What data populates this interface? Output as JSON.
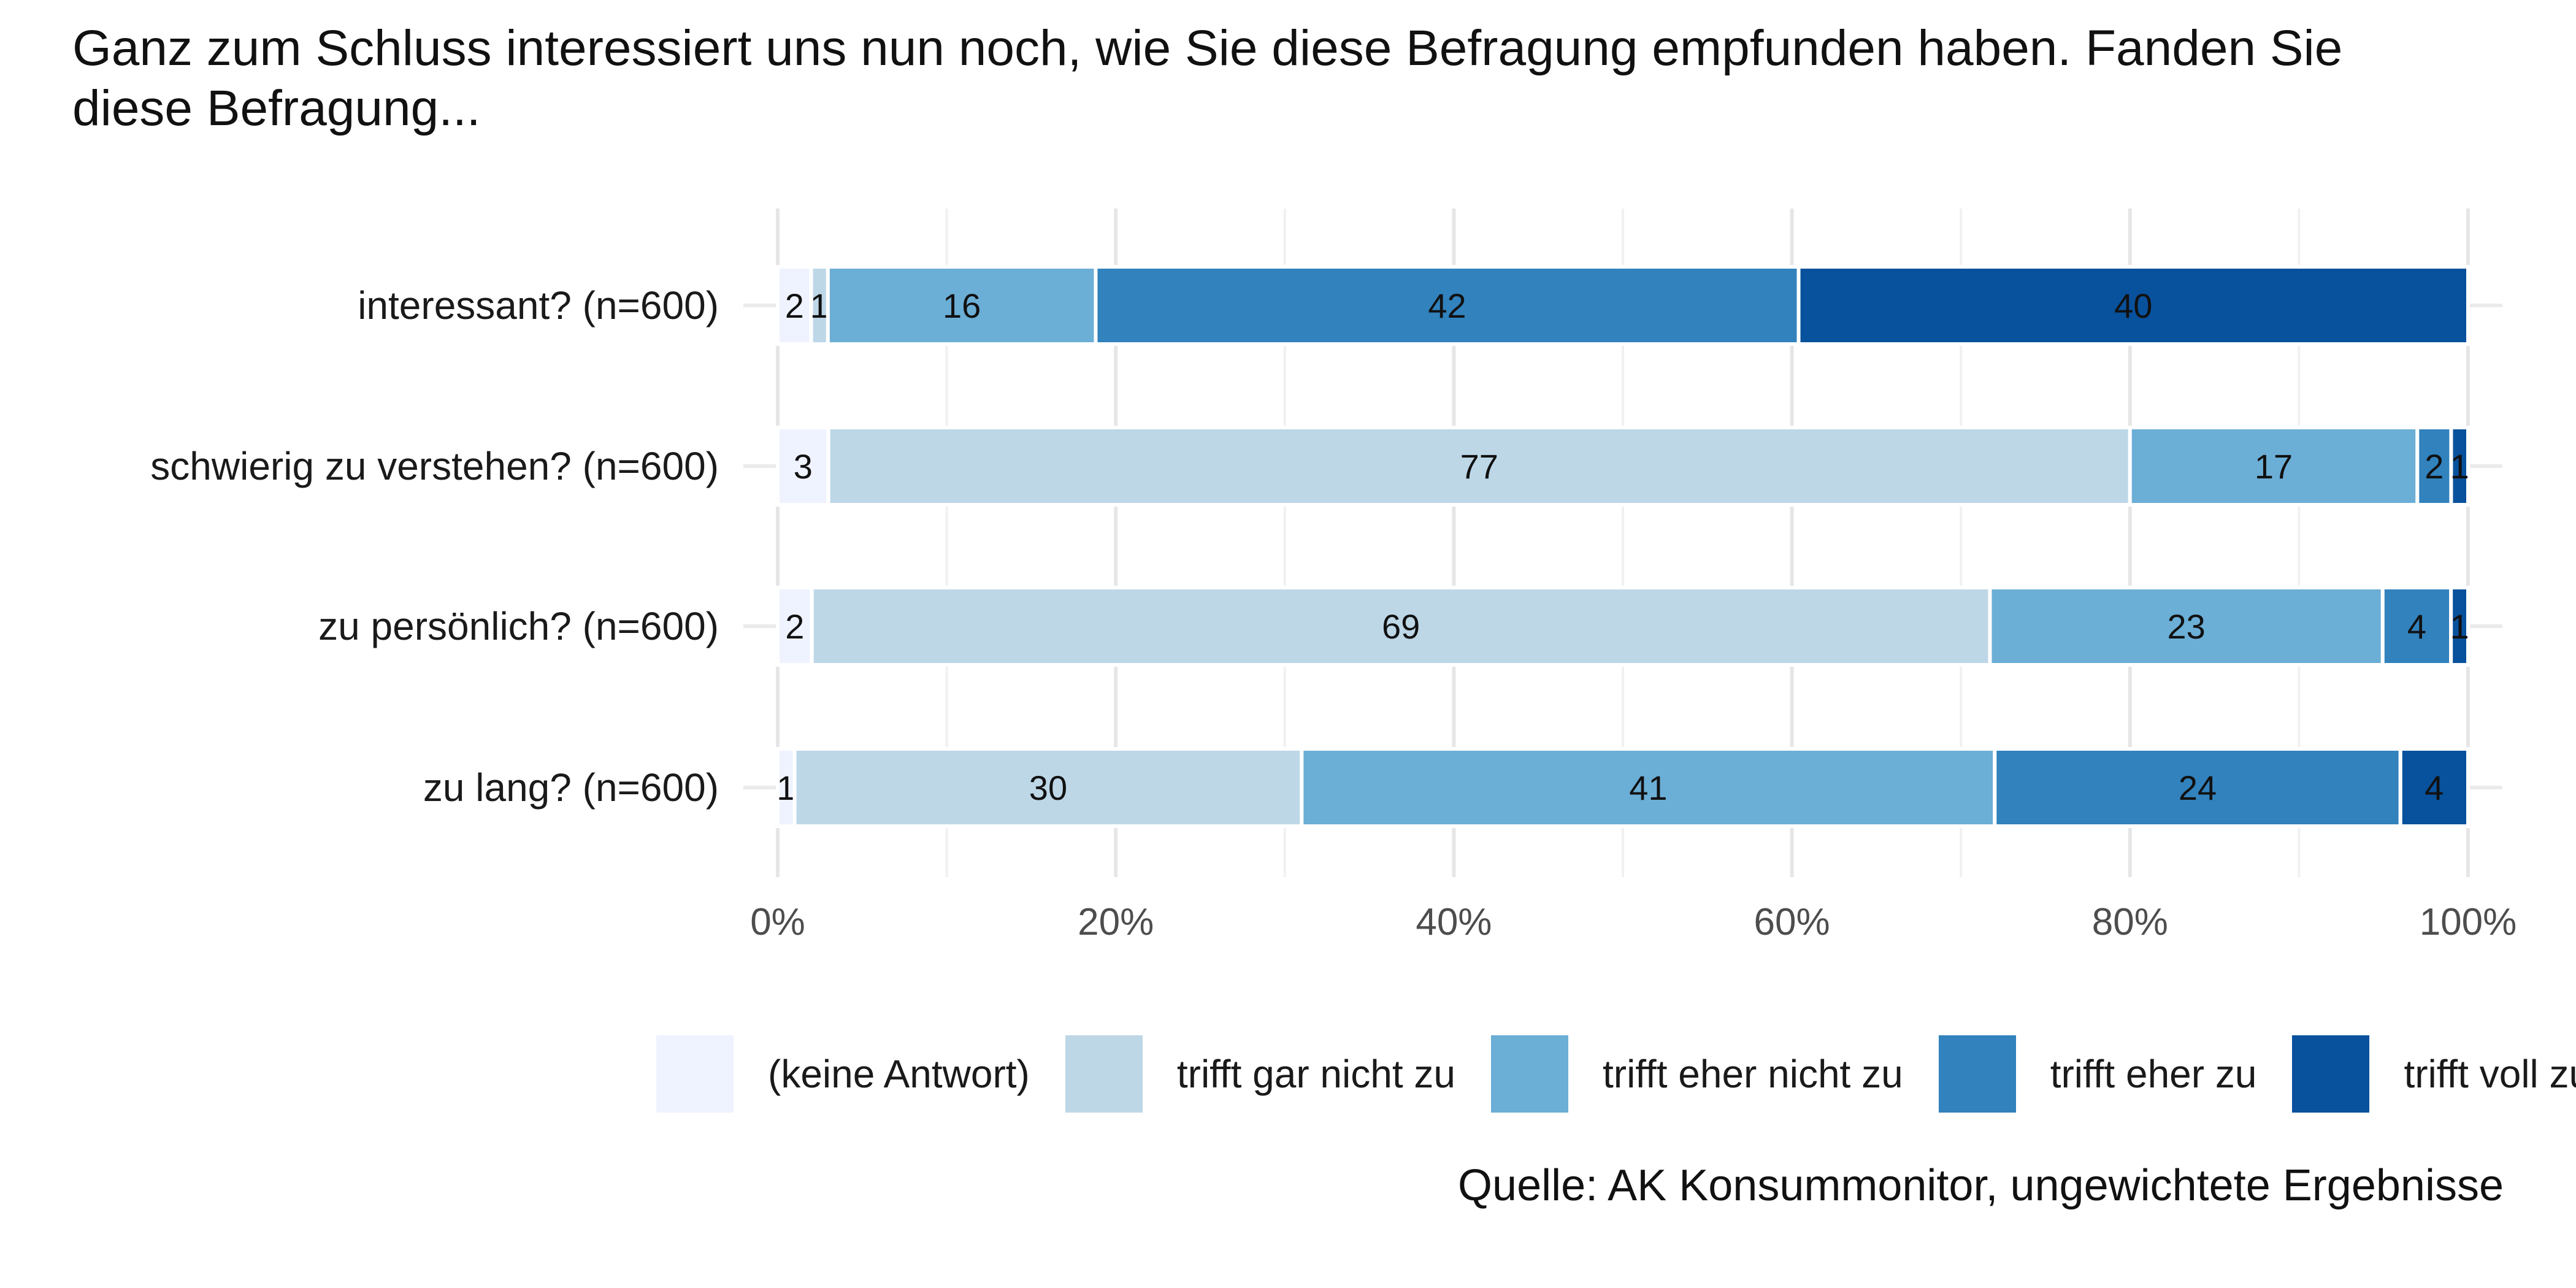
{
  "title": "Ganz zum Schluss interessiert uns nun noch, wie Sie diese Befragung empfunden haben. Fanden Sie diese Befragung...",
  "caption": "Quelle: AK Konsummonitor, ungewichtete Ergebnisse",
  "chart_data": {
    "type": "bar",
    "orientation": "horizontal",
    "stacked": true,
    "title": "Ganz zum Schluss interessiert uns nun noch, wie Sie diese Befragung empfunden haben. Fanden Sie diese Befragung...",
    "xlabel": "",
    "ylabel": "",
    "xlim": [
      0,
      100
    ],
    "x_ticks": [
      "0%",
      "20%",
      "40%",
      "60%",
      "80%",
      "100%"
    ],
    "grid": true,
    "legend_position": "bottom",
    "categories": [
      "interessant? (n=600)",
      "schwierig zu verstehen? (n=600)",
      "zu persönlich? (n=600)",
      "zu lang? (n=600)"
    ],
    "series": [
      {
        "name": "(keine Antwort)",
        "color": "#eff3ff",
        "values": [
          2,
          3,
          2,
          1
        ]
      },
      {
        "name": "trifft gar nicht zu",
        "color": "#bdd7e7",
        "values": [
          1,
          77,
          69,
          30
        ]
      },
      {
        "name": "trifft eher nicht zu",
        "color": "#6baed6",
        "values": [
          16,
          17,
          23,
          41
        ]
      },
      {
        "name": "trifft eher zu",
        "color": "#3182bd",
        "values": [
          42,
          2,
          4,
          24
        ]
      },
      {
        "name": "trifft voll zu",
        "color": "#08519c",
        "values": [
          40,
          1,
          1,
          4
        ]
      }
    ]
  }
}
